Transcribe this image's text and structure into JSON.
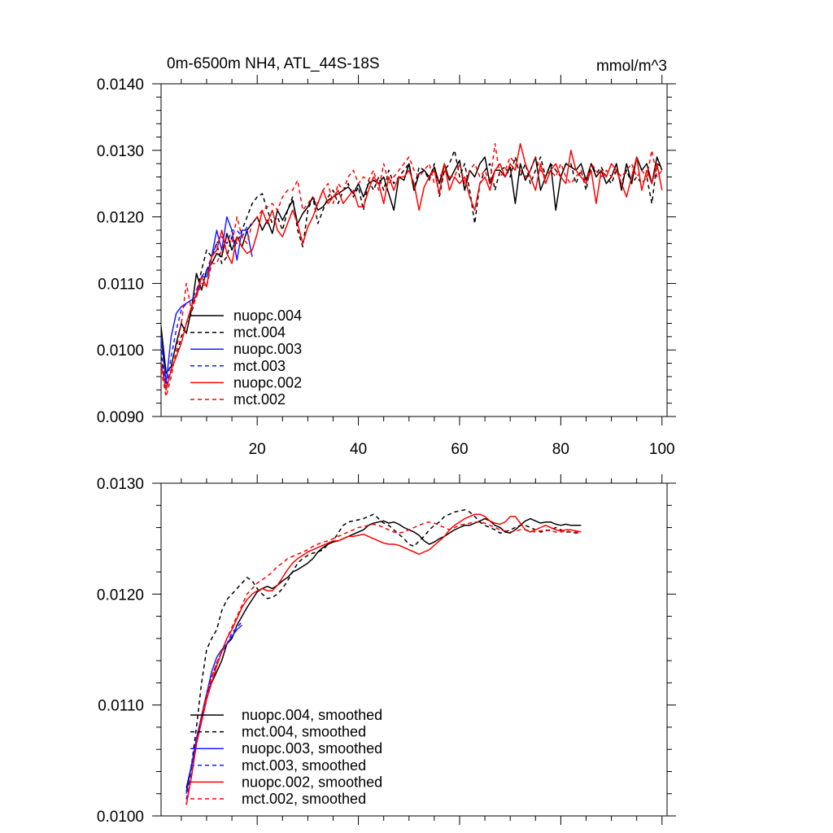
{
  "chart_data": [
    {
      "type": "line",
      "title_left": "0m-6500m NH4, ATL_44S-18S",
      "title_right": "mmol/m^3",
      "xlabel": "",
      "ylabel": "",
      "xlim": [
        1,
        101
      ],
      "ylim": [
        0.009,
        0.014
      ],
      "xticks": [
        20,
        40,
        60,
        80,
        100
      ],
      "yticks": [
        "0.0090",
        "0.0100",
        "0.0110",
        "0.0120",
        "0.0130",
        "0.0140"
      ],
      "series": [
        {
          "name": "nuopc.004",
          "color": "#000000",
          "dash": false,
          "x_start": 1,
          "values": [
            0.01035,
            0.00965,
            0.00975,
            0.0101,
            0.0104,
            0.01025,
            0.0106,
            0.01115,
            0.0109,
            0.0112,
            0.0113,
            0.01145,
            0.0114,
            0.01175,
            0.0115,
            0.0117,
            0.01155,
            0.0118,
            0.0119,
            0.012,
            0.0118,
            0.01195,
            0.01175,
            0.0121,
            0.01195,
            0.0121,
            0.01225,
            0.0119,
            0.01205,
            0.01215,
            0.0123,
            0.0121,
            0.01215,
            0.01225,
            0.0123,
            0.01235,
            0.0124,
            0.01245,
            0.01235,
            0.0125,
            0.0123,
            0.0125,
            0.01255,
            0.0125,
            0.0126,
            0.01235,
            0.0121,
            0.0126,
            0.01255,
            0.0128,
            0.0124,
            0.01265,
            0.0127,
            0.0126,
            0.01275,
            0.0125,
            0.0128,
            0.01255,
            0.0127,
            0.01285,
            0.0124,
            0.0127,
            0.0126,
            0.0128,
            0.0129,
            0.0125,
            0.0127,
            0.0127,
            0.0126,
            0.01275,
            0.0122,
            0.0128,
            0.01255,
            0.0127,
            0.0129,
            0.0124,
            0.0126,
            0.0128,
            0.0121,
            0.0126,
            0.0128,
            0.01275,
            0.0127,
            0.0128,
            0.01255,
            0.0128,
            0.0126,
            0.0127,
            0.0125,
            0.0126,
            0.0128,
            0.0124,
            0.0128,
            0.0125,
            0.0129,
            0.0127,
            0.0128,
            0.0125,
            0.0129,
            0.0127
          ]
        },
        {
          "name": "mct.004",
          "color": "#000000",
          "dash": true,
          "x_start": 1,
          "values": [
            0.0099,
            0.0094,
            0.0097,
            0.0099,
            0.0102,
            0.0104,
            0.01055,
            0.01085,
            0.0112,
            0.0115,
            0.0114,
            0.0116,
            0.0113,
            0.0114,
            0.0117,
            0.0116,
            0.0118,
            0.012,
            0.0122,
            0.0123,
            0.01235,
            0.0121,
            0.0119,
            0.012,
            0.0118,
            0.0121,
            0.0123,
            0.0118,
            0.01155,
            0.0121,
            0.0123,
            0.0119,
            0.0121,
            0.0123,
            0.0124,
            0.0122,
            0.0124,
            0.0125,
            0.0123,
            0.01245,
            0.0121,
            0.01255,
            0.0124,
            0.0126,
            0.0124,
            0.0127,
            0.0125,
            0.0126,
            0.0127,
            0.0128,
            0.0124,
            0.01275,
            0.0127,
            0.01255,
            0.0128,
            0.0123,
            0.0127,
            0.0128,
            0.013,
            0.0126,
            0.0128,
            0.0124,
            0.0119,
            0.0125,
            0.0127,
            0.0128,
            0.0124,
            0.0127,
            0.01275,
            0.0126,
            0.0129,
            0.0126,
            0.0128,
            0.0125,
            0.0127,
            0.0129,
            0.0126,
            0.0128,
            0.0127,
            0.0126,
            0.0128,
            0.0128,
            0.0125,
            0.0127,
            0.0124,
            0.0128,
            0.01265,
            0.01275,
            0.0126,
            0.0125,
            0.0127,
            0.0125,
            0.0127,
            0.0125,
            0.0126,
            0.0125,
            0.0126,
            0.0122,
            0.0128,
            0.01275
          ]
        },
        {
          "name": "nuopc.003",
          "color": "#1a1aff",
          "dash": false,
          "x_start": 1,
          "values": [
            0.0102,
            0.0095,
            0.0102,
            0.01055,
            0.01065,
            0.0107,
            0.01075,
            0.0108,
            0.0111,
            0.0111,
            0.0114,
            0.0118,
            0.0115,
            0.012,
            0.0118,
            0.01135,
            0.0118,
            0.0118,
            0.0114
          ]
        },
        {
          "name": "mct.003",
          "color": "#1a1aff",
          "dash": true,
          "x_start": 1,
          "values": [
            0.0101,
            0.0094,
            0.0099,
            0.0103,
            0.0106,
            0.0107,
            0.01075,
            0.0109,
            0.0111,
            0.0112,
            0.0114,
            0.0116,
            0.0117,
            0.0116,
            0.0118,
            0.0118,
            0.0117,
            0.01185,
            0.0119
          ]
        },
        {
          "name": "nuopc.002",
          "color": "#ff0000",
          "dash": false,
          "x_start": 1,
          "values": [
            0.0098,
            0.0094,
            0.0097,
            0.0099,
            0.0101,
            0.0104,
            0.01065,
            0.01085,
            0.0111,
            0.01095,
            0.0114,
            0.0115,
            0.0118,
            0.01145,
            0.0113,
            0.0117,
            0.01155,
            0.01145,
            0.0115,
            0.01175,
            0.0121,
            0.0119,
            0.0121,
            0.0118,
            0.0117,
            0.0119,
            0.0121,
            0.0119,
            0.0116,
            0.01185,
            0.012,
            0.0122,
            0.0124,
            0.0122,
            0.0123,
            0.0124,
            0.0122,
            0.0123,
            0.0124,
            0.01215,
            0.01215,
            0.0124,
            0.0126,
            0.0125,
            0.0122,
            0.0126,
            0.0124,
            0.0126,
            0.0126,
            0.0127,
            0.0125,
            0.0121,
            0.01245,
            0.0126,
            0.0127,
            0.01235,
            0.0128,
            0.0124,
            0.0126,
            0.0125,
            0.0126,
            0.0123,
            0.0121,
            0.0125,
            0.0126,
            0.0124,
            0.0127,
            0.0128,
            0.0126,
            0.0128,
            0.0127,
            0.0131,
            0.0128,
            0.0126,
            0.0124,
            0.0128,
            0.0125,
            0.0127,
            0.0128,
            0.0126,
            0.0125,
            0.013,
            0.0127,
            0.0126,
            0.0125,
            0.0127,
            0.0122,
            0.0127,
            0.0126,
            0.0128,
            0.0127,
            0.0125,
            0.0123,
            0.0126,
            0.0129,
            0.0124,
            0.0127,
            0.0125,
            0.0128,
            0.0124
          ]
        },
        {
          "name": "mct.002",
          "color": "#ff0000",
          "dash": true,
          "x_start": 1,
          "values": [
            0.0097,
            0.0093,
            0.0096,
            0.01,
            0.0104,
            0.011,
            0.0106,
            0.0108,
            0.011,
            0.01095,
            0.0113,
            0.0113,
            0.0115,
            0.0117,
            0.0116,
            0.012,
            0.0117,
            0.0116,
            0.0119,
            0.012,
            0.0121,
            0.01215,
            0.0122,
            0.0121,
            0.0123,
            0.0124,
            0.0124,
            0.01255,
            0.0121,
            0.0122,
            0.0123,
            0.0122,
            0.0124,
            0.0125,
            0.0122,
            0.0125,
            0.0124,
            0.0126,
            0.0127,
            0.0125,
            0.0126,
            0.01255,
            0.0127,
            0.0124,
            0.0128,
            0.0125,
            0.0126,
            0.0127,
            0.0128,
            0.0129,
            0.0127,
            0.0126,
            0.0127,
            0.0128,
            0.0125,
            0.0126,
            0.0127,
            0.0126,
            0.0126,
            0.0128,
            0.0125,
            0.0127,
            0.0128,
            0.0126,
            0.0127,
            0.0125,
            0.0131,
            0.0126,
            0.0127,
            0.0129,
            0.0128,
            0.0127,
            0.0126,
            0.0127,
            0.0129,
            0.0127,
            0.0126,
            0.0127,
            0.0126,
            0.0128,
            0.0126,
            0.0125,
            0.0126,
            0.0127,
            0.0125,
            0.0128,
            0.0127,
            0.0126,
            0.0127,
            0.0126,
            0.0127,
            0.0126,
            0.0127,
            0.0128,
            0.0126,
            0.0127,
            0.0126,
            0.013,
            0.0126,
            0.0127
          ]
        }
      ]
    },
    {
      "type": "line",
      "xlabel": "",
      "ylabel": "",
      "xlim": [
        1,
        101
      ],
      "ylim": [
        0.01,
        0.013
      ],
      "yticks": [
        "0.0100",
        "0.0110",
        "0.0120",
        "0.0130"
      ],
      "series": [
        {
          "name": "nuopc.004, smoothed",
          "color": "#000000",
          "dash": false,
          "x_start": 6,
          "values": [
            0.01025,
            0.01045,
            0.01065,
            0.0109,
            0.0111,
            0.0112,
            0.0113,
            0.0114,
            0.01155,
            0.0116,
            0.01172,
            0.0118,
            0.01188,
            0.01195,
            0.01202,
            0.01205,
            0.01207,
            0.01205,
            0.01208,
            0.01212,
            0.01215,
            0.0122,
            0.01222,
            0.01225,
            0.01228,
            0.01232,
            0.01238,
            0.01242,
            0.01245,
            0.01247,
            0.01248,
            0.0125,
            0.01252,
            0.01254,
            0.01256,
            0.01258,
            0.01262,
            0.01264,
            0.01265,
            0.01266,
            0.01264,
            0.01265,
            0.01263,
            0.0126,
            0.01258,
            0.01256,
            0.01253,
            0.01248,
            0.01245,
            0.01247,
            0.0125,
            0.01252,
            0.01255,
            0.01258,
            0.0126,
            0.01262,
            0.01262,
            0.01264,
            0.01266,
            0.01268,
            0.01266,
            0.01262,
            0.0126,
            0.01256,
            0.01255,
            0.01258,
            0.01262,
            0.01266,
            0.01268,
            0.01266,
            0.01264,
            0.01265,
            0.01265,
            0.01263,
            0.01262,
            0.01263,
            0.01262,
            0.01262,
            0.01262
          ]
        },
        {
          "name": "mct.004, smoothed",
          "color": "#000000",
          "dash": true,
          "x_start": 6,
          "values": [
            0.01022,
            0.01045,
            0.0108,
            0.0112,
            0.0115,
            0.0116,
            0.01168,
            0.01185,
            0.01195,
            0.012,
            0.01205,
            0.0121,
            0.01215,
            0.01212,
            0.01205,
            0.012,
            0.01196,
            0.01197,
            0.012,
            0.01205,
            0.01212,
            0.0122,
            0.01228,
            0.01232,
            0.01235,
            0.01237,
            0.01238,
            0.0124,
            0.01245,
            0.01248,
            0.01255,
            0.01262,
            0.01265,
            0.01266,
            0.01267,
            0.01268,
            0.0127,
            0.01272,
            0.01268,
            0.01264,
            0.01262,
            0.01258,
            0.01254,
            0.0125,
            0.01245,
            0.01243,
            0.01248,
            0.01252,
            0.01258,
            0.01262,
            0.01265,
            0.0127,
            0.01272,
            0.01274,
            0.01275,
            0.01276,
            0.01274,
            0.0127,
            0.01265,
            0.01262,
            0.0126,
            0.01258,
            0.01255,
            0.01256,
            0.01258,
            0.0126,
            0.01262,
            0.01262,
            0.0126,
            0.01258,
            0.01256,
            0.01257,
            0.01258,
            0.0126,
            0.01258,
            0.01256,
            0.01256,
            0.01255,
            0.01256
          ]
        },
        {
          "name": "nuopc.003, smoothed",
          "color": "#1a1aff",
          "dash": false,
          "x_start": 6,
          "values": [
            0.0102,
            0.01045,
            0.0107,
            0.0109,
            0.0111,
            0.0113,
            0.01143,
            0.0115,
            0.01155,
            0.01162,
            0.01168,
            0.01172
          ]
        },
        {
          "name": "mct.003, smoothed",
          "color": "#1a1aff",
          "dash": true,
          "x_start": 6,
          "values": [
            0.01015,
            0.0104,
            0.01065,
            0.01085,
            0.01105,
            0.01125,
            0.01138,
            0.01148,
            0.01155,
            0.01165,
            0.0117,
            0.01175
          ]
        },
        {
          "name": "nuopc.002, smoothed",
          "color": "#ff0000",
          "dash": false,
          "x_start": 6,
          "values": [
            0.0101,
            0.01035,
            0.01065,
            0.01085,
            0.01105,
            0.0112,
            0.01135,
            0.01148,
            0.0116,
            0.01168,
            0.01178,
            0.01188,
            0.01195,
            0.012,
            0.01203,
            0.01205,
            0.01203,
            0.01203,
            0.01208,
            0.01215,
            0.01222,
            0.01228,
            0.01232,
            0.01235,
            0.01238,
            0.0124,
            0.01242,
            0.01244,
            0.01246,
            0.01248,
            0.01248,
            0.0125,
            0.01252,
            0.01252,
            0.01253,
            0.01254,
            0.01252,
            0.0125,
            0.01248,
            0.01246,
            0.01245,
            0.01245,
            0.01244,
            0.01242,
            0.0124,
            0.01238,
            0.01236,
            0.01238,
            0.0124,
            0.01244,
            0.01248,
            0.01252,
            0.01258,
            0.01262,
            0.01265,
            0.01268,
            0.0127,
            0.01272,
            0.01272,
            0.0127,
            0.01266,
            0.01264,
            0.01263,
            0.01265,
            0.0127,
            0.0127,
            0.01264,
            0.01258,
            0.01256,
            0.01258,
            0.0126,
            0.01262,
            0.0126,
            0.01258,
            0.01257,
            0.01258,
            0.01258,
            0.01257,
            0.01256
          ]
        },
        {
          "name": "mct.002, smoothed",
          "color": "#ff0000",
          "dash": true,
          "x_start": 6,
          "values": [
            0.0101,
            0.01035,
            0.01065,
            0.0109,
            0.0111,
            0.01125,
            0.01138,
            0.01148,
            0.0116,
            0.0117,
            0.0118,
            0.0119,
            0.012,
            0.01205,
            0.0121,
            0.01213,
            0.01216,
            0.0122,
            0.01225,
            0.01228,
            0.01232,
            0.01234,
            0.01236,
            0.01238,
            0.0124,
            0.01243,
            0.01245,
            0.01247,
            0.01248,
            0.0125,
            0.01252,
            0.01254,
            0.01256,
            0.01258,
            0.0126,
            0.01261,
            0.01262,
            0.01263,
            0.01262,
            0.0126,
            0.01258,
            0.01256,
            0.01255,
            0.01256,
            0.01258,
            0.0126,
            0.01262,
            0.01264,
            0.01265,
            0.01264,
            0.01262,
            0.0126,
            0.01258,
            0.0126,
            0.01262,
            0.01263,
            0.01264,
            0.01265,
            0.01265,
            0.01264,
            0.01262,
            0.0126,
            0.01258,
            0.01257,
            0.01256,
            0.01257,
            0.01258,
            0.01258,
            0.01257,
            0.01256,
            0.01257,
            0.01258,
            0.01257,
            0.01256,
            0.01256,
            0.01257,
            0.01256,
            0.01256,
            0.01255
          ]
        }
      ]
    }
  ]
}
